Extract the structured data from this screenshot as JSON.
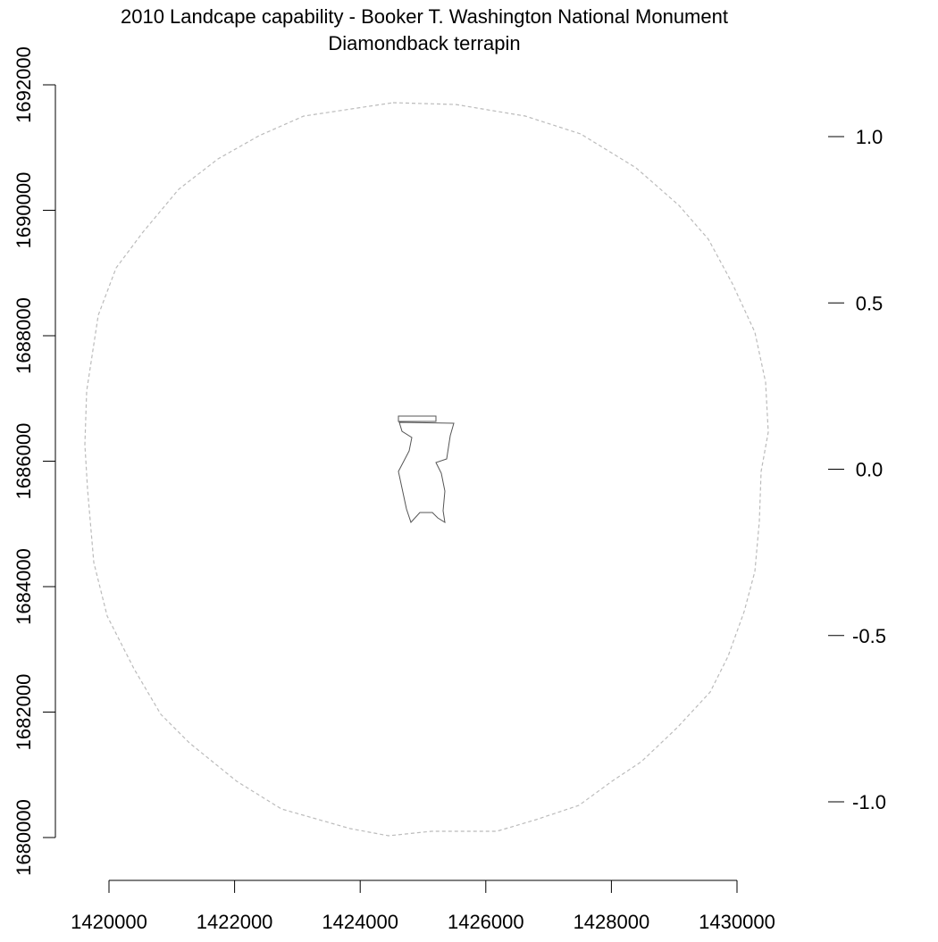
{
  "title": {
    "line1": "2010 Landcape capability - Booker T. Washington National Monument",
    "line2": "Diamondback terrapin"
  },
  "map": {
    "x_ticks": [
      "1420000",
      "1422000",
      "1424000",
      "1426000",
      "1428000",
      "1430000"
    ],
    "y_ticks": [
      "1680000",
      "1682000",
      "1684000",
      "1686000",
      "1688000",
      "1690000",
      "1692000"
    ],
    "legend_ticks": [
      "1.0",
      "0.5",
      "0.0",
      "-0.5",
      "-1.0"
    ],
    "colors": {
      "buffer_circle": "#bbbbbb",
      "boundary": "#555555",
      "axis": "#000000"
    }
  }
}
